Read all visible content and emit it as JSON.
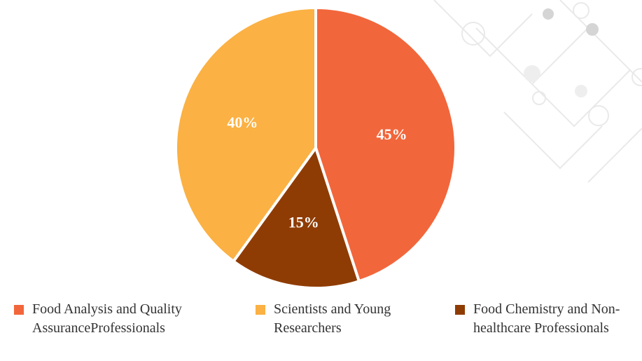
{
  "chart_data": {
    "type": "pie",
    "categories": [
      "Food Analysis and Quality AssuranceProfessionals",
      "Food Chemistry and Non-healthcare Professionals",
      "Scientists and Young Researchers"
    ],
    "values": [
      45,
      15,
      40
    ],
    "value_labels": [
      "45%",
      "15%",
      "40%"
    ],
    "colors": [
      "#f2663b",
      "#8f3c04",
      "#fbb143"
    ],
    "legend": "bottom",
    "legend_order": [
      0,
      2,
      1
    ]
  }
}
